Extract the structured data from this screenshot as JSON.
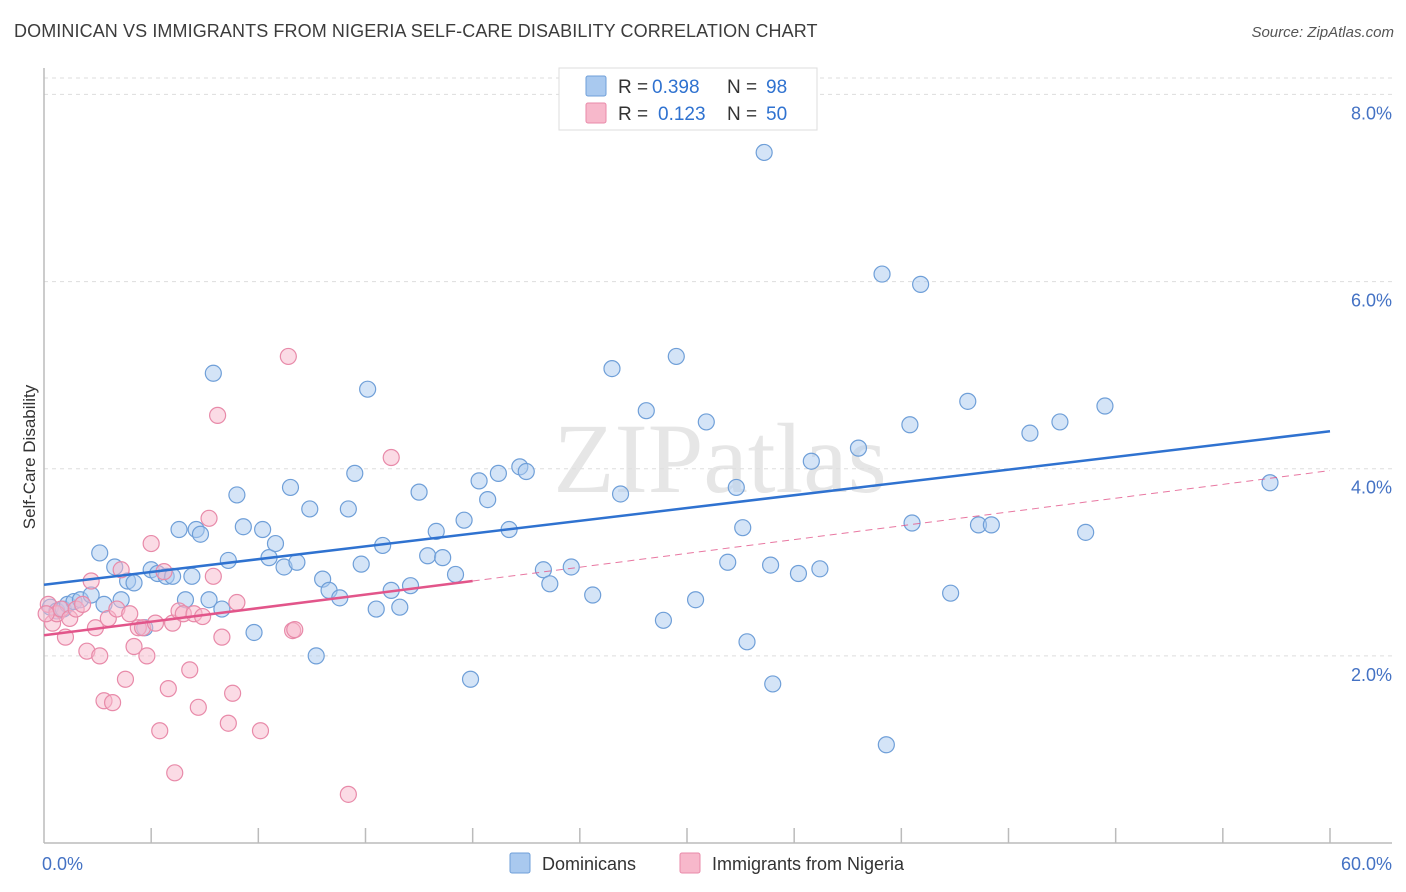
{
  "title": "DOMINICAN VS IMMIGRANTS FROM NIGERIA SELF-CARE DISABILITY CORRELATION CHART",
  "source": "Source: ZipAtlas.com",
  "watermark": "ZIPatlas",
  "colors": {
    "blue_fill": "#a9c9ef",
    "blue_stroke": "#6f9fd8",
    "blue_line": "#2f72d0",
    "pink_fill": "#f7b8cb",
    "pink_stroke": "#e88aa9",
    "pink_line": "#e2558a",
    "tick_text": "#4472c4",
    "grid": "#dddddd"
  },
  "legend_top": {
    "rows": [
      {
        "r_label": "R =",
        "r_value": "0.398",
        "n_label": "N =",
        "n_value": "98",
        "color": "blue"
      },
      {
        "r_label": "R =",
        "r_value": "0.123",
        "n_label": "N =",
        "n_value": "50",
        "color": "pink"
      }
    ]
  },
  "chart_data": {
    "type": "scatter",
    "title": "DOMINICAN VS IMMIGRANTS FROM NIGERIA SELF-CARE DISABILITY CORRELATION CHART",
    "xlabel": "",
    "ylabel": "Self-Care Disability",
    "xlim": [
      0,
      60
    ],
    "ylim": [
      0,
      8.4
    ],
    "x_tick_labels": {
      "left": "0.0%",
      "right": "60.0%"
    },
    "y_ticks": [
      {
        "value": 2,
        "label": "2.0%"
      },
      {
        "value": 4,
        "label": "4.0%"
      },
      {
        "value": 6,
        "label": "6.0%"
      },
      {
        "value": 8,
        "label": "8.0%"
      }
    ],
    "series": [
      {
        "name": "Dominicans",
        "color": "blue",
        "trend": {
          "x0": 0,
          "y0": 2.76,
          "x1": 60,
          "y1": 4.4,
          "style": "solid"
        },
        "points": [
          [
            0.3,
            2.52
          ],
          [
            0.6,
            2.48
          ],
          [
            0.9,
            2.5
          ],
          [
            1.1,
            2.55
          ],
          [
            1.4,
            2.58
          ],
          [
            1.7,
            2.6
          ],
          [
            2.2,
            2.65
          ],
          [
            2.6,
            3.1
          ],
          [
            2.8,
            2.55
          ],
          [
            3.3,
            2.95
          ],
          [
            3.6,
            2.6
          ],
          [
            3.9,
            2.8
          ],
          [
            4.2,
            2.78
          ],
          [
            4.7,
            2.3
          ],
          [
            5.0,
            2.92
          ],
          [
            5.3,
            2.88
          ],
          [
            5.7,
            2.85
          ],
          [
            6.0,
            2.85
          ],
          [
            6.3,
            3.35
          ],
          [
            6.6,
            2.6
          ],
          [
            6.9,
            2.85
          ],
          [
            7.1,
            3.35
          ],
          [
            7.3,
            3.3
          ],
          [
            7.7,
            2.6
          ],
          [
            7.9,
            5.02
          ],
          [
            8.3,
            2.5
          ],
          [
            8.6,
            3.02
          ],
          [
            9.0,
            3.72
          ],
          [
            9.3,
            3.38
          ],
          [
            9.8,
            2.25
          ],
          [
            10.2,
            3.35
          ],
          [
            10.5,
            3.05
          ],
          [
            10.8,
            3.2
          ],
          [
            11.2,
            2.95
          ],
          [
            11.5,
            3.8
          ],
          [
            11.8,
            3.0
          ],
          [
            12.4,
            3.57
          ],
          [
            12.7,
            2.0
          ],
          [
            13.0,
            2.82
          ],
          [
            13.3,
            2.7
          ],
          [
            13.8,
            2.62
          ],
          [
            14.2,
            3.57
          ],
          [
            14.5,
            3.95
          ],
          [
            14.8,
            2.98
          ],
          [
            15.1,
            4.85
          ],
          [
            15.5,
            2.5
          ],
          [
            15.8,
            3.18
          ],
          [
            16.2,
            2.7
          ],
          [
            16.6,
            2.52
          ],
          [
            17.1,
            2.75
          ],
          [
            17.5,
            3.75
          ],
          [
            17.9,
            3.07
          ],
          [
            18.3,
            3.33
          ],
          [
            18.6,
            3.05
          ],
          [
            19.2,
            2.87
          ],
          [
            19.6,
            3.45
          ],
          [
            19.9,
            1.75
          ],
          [
            20.3,
            3.87
          ],
          [
            20.7,
            3.67
          ],
          [
            21.2,
            3.95
          ],
          [
            21.7,
            3.35
          ],
          [
            22.2,
            4.02
          ],
          [
            22.5,
            3.97
          ],
          [
            23.3,
            2.92
          ],
          [
            23.6,
            2.77
          ],
          [
            24.6,
            2.95
          ],
          [
            25.6,
            2.65
          ],
          [
            26.5,
            5.07
          ],
          [
            26.9,
            3.73
          ],
          [
            28.1,
            4.62
          ],
          [
            28.9,
            2.38
          ],
          [
            29.5,
            5.2
          ],
          [
            30.4,
            2.6
          ],
          [
            30.9,
            4.5
          ],
          [
            31.9,
            3.0
          ],
          [
            32.3,
            3.8
          ],
          [
            32.6,
            3.37
          ],
          [
            32.8,
            2.15
          ],
          [
            33.6,
            7.38
          ],
          [
            34.0,
            1.7
          ],
          [
            33.9,
            2.97
          ],
          [
            35.2,
            2.88
          ],
          [
            35.8,
            4.08
          ],
          [
            36.2,
            2.93
          ],
          [
            38.0,
            4.22
          ],
          [
            39.1,
            6.08
          ],
          [
            39.3,
            1.05
          ],
          [
            40.9,
            5.97
          ],
          [
            40.5,
            3.42
          ],
          [
            40.4,
            4.47
          ],
          [
            42.3,
            2.67
          ],
          [
            43.1,
            4.72
          ],
          [
            43.6,
            3.4
          ],
          [
            44.2,
            3.4
          ],
          [
            46.0,
            4.38
          ],
          [
            47.4,
            4.5
          ],
          [
            48.6,
            3.32
          ],
          [
            49.5,
            4.67
          ],
          [
            57.2,
            3.85
          ]
        ]
      },
      {
        "name": "Immigrants from Nigeria",
        "color": "pink",
        "trend": {
          "x0": 0,
          "y0": 2.22,
          "x1": 20,
          "y1": 2.8,
          "style": "solid",
          "extension": {
            "x0": 20,
            "y0": 2.8,
            "x1": 60,
            "y1": 3.98,
            "style": "dashed"
          }
        },
        "points": [
          [
            0.2,
            2.55
          ],
          [
            0.4,
            2.35
          ],
          [
            0.6,
            2.45
          ],
          [
            0.8,
            2.5
          ],
          [
            1.0,
            2.2
          ],
          [
            1.2,
            2.4
          ],
          [
            1.5,
            2.5
          ],
          [
            1.8,
            2.55
          ],
          [
            2.0,
            2.05
          ],
          [
            2.2,
            2.8
          ],
          [
            2.4,
            2.3
          ],
          [
            2.6,
            2.0
          ],
          [
            2.8,
            1.52
          ],
          [
            3.0,
            2.4
          ],
          [
            3.2,
            1.5
          ],
          [
            3.4,
            2.5
          ],
          [
            3.6,
            2.92
          ],
          [
            3.8,
            1.75
          ],
          [
            4.0,
            2.45
          ],
          [
            4.2,
            2.1
          ],
          [
            4.4,
            2.3
          ],
          [
            4.6,
            2.3
          ],
          [
            4.8,
            2.0
          ],
          [
            5.0,
            3.2
          ],
          [
            5.2,
            2.35
          ],
          [
            5.4,
            1.2
          ],
          [
            5.6,
            2.9
          ],
          [
            5.8,
            1.65
          ],
          [
            6.0,
            2.35
          ],
          [
            6.1,
            0.75
          ],
          [
            6.3,
            2.48
          ],
          [
            6.5,
            2.45
          ],
          [
            6.8,
            1.85
          ],
          [
            7.0,
            2.45
          ],
          [
            7.2,
            1.45
          ],
          [
            7.4,
            2.42
          ],
          [
            7.7,
            3.47
          ],
          [
            7.9,
            2.85
          ],
          [
            8.1,
            4.57
          ],
          [
            8.3,
            2.2
          ],
          [
            8.6,
            1.28
          ],
          [
            8.8,
            1.6
          ],
          [
            9.0,
            2.57
          ],
          [
            10.1,
            1.2
          ],
          [
            11.4,
            5.2
          ],
          [
            11.6,
            2.27
          ],
          [
            11.7,
            2.28
          ],
          [
            14.2,
            0.52
          ],
          [
            16.2,
            4.12
          ],
          [
            0.1,
            2.45
          ]
        ]
      }
    ]
  },
  "legend_bottom": {
    "items": [
      {
        "label": "Dominicans",
        "color": "blue"
      },
      {
        "label": "Immigrants from Nigeria",
        "color": "pink"
      }
    ]
  }
}
